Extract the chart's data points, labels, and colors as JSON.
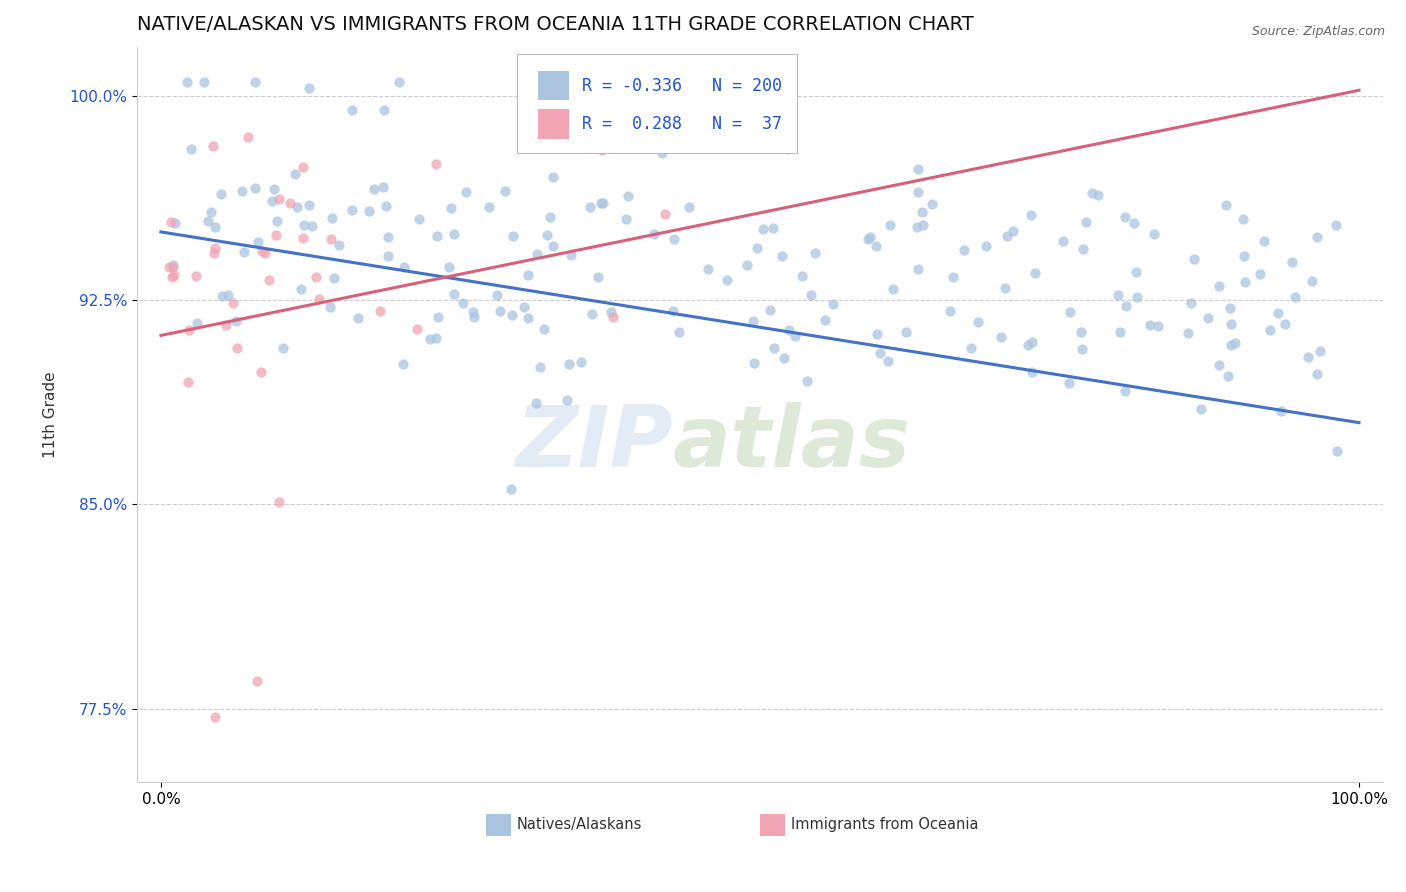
{
  "title": "NATIVE/ALASKAN VS IMMIGRANTS FROM OCEANIA 11TH GRADE CORRELATION CHART",
  "source_text": "Source: ZipAtlas.com",
  "ylabel": "11th Grade",
  "watermark_zip": "ZIP",
  "watermark_atlas": "atlas",
  "xlim": [
    -0.02,
    1.02
  ],
  "ylim": [
    0.748,
    1.018
  ],
  "xticklabels": [
    "0.0%",
    "100.0%"
  ],
  "ytick_positions": [
    0.775,
    0.85,
    0.925,
    1.0
  ],
  "ytick_labels": [
    "77.5%",
    "85.0%",
    "92.5%",
    "100.0%"
  ],
  "blue_color": "#aac4e0",
  "pink_color": "#f0a4b4",
  "blue_line_color": "#4472c4",
  "pink_line_color": "#d9607a",
  "blue_R": -0.336,
  "blue_N": 200,
  "pink_R": 0.288,
  "pink_N": 37,
  "blue_seed": 42,
  "pink_seed": 17,
  "background_color": "#ffffff",
  "grid_color": "#cccccc",
  "title_fontsize": 14,
  "axis_fontsize": 11,
  "tick_fontsize": 11,
  "legend_color": "#2255cc"
}
